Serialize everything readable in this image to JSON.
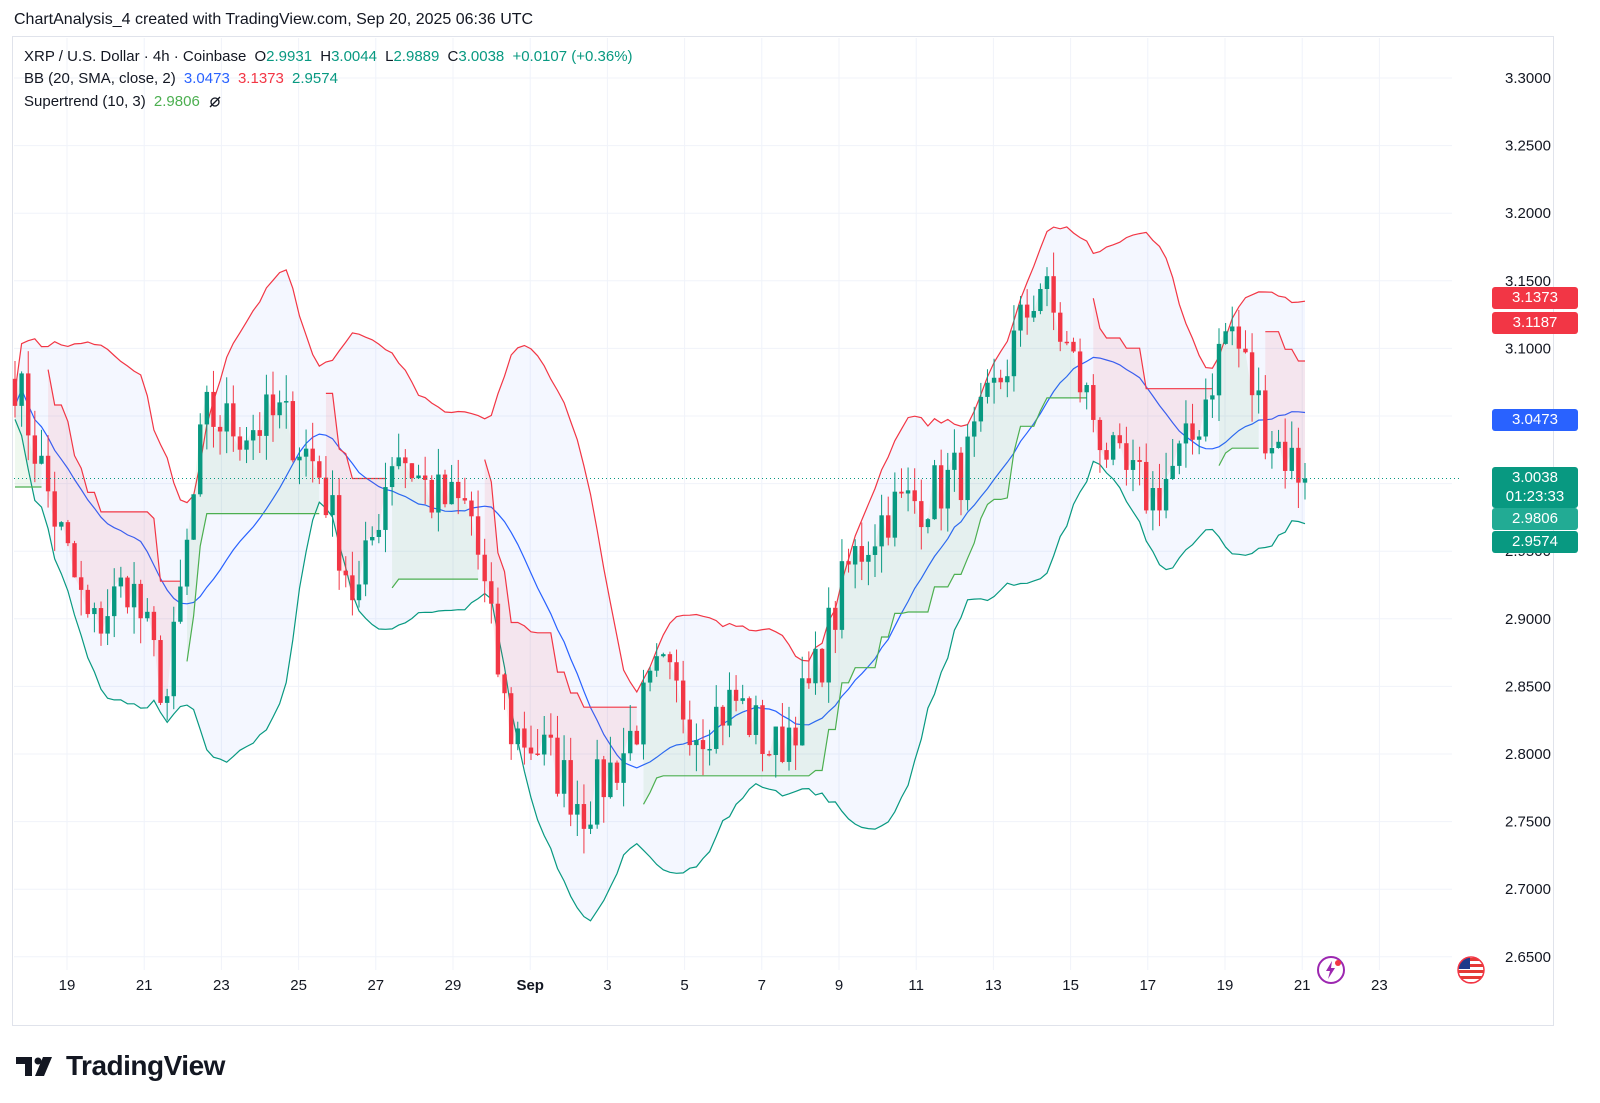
{
  "header": {
    "text": "ChartAnalysis_4 created with TradingView.com, Sep 20, 2025 06:36 UTC"
  },
  "legend": {
    "symbol": "XRP / U.S. Dollar · 4h · Coinbase",
    "o_label": "O",
    "o_value": "2.9931",
    "h_label": "H",
    "h_value": "3.0044",
    "l_label": "L",
    "l_value": "2.9889",
    "c_label": "C",
    "c_value": "3.0038",
    "change": "+0.0107 (+0.36%)",
    "bb_label": "BB (20, SMA, close, 2)",
    "bb_basis": "3.0473",
    "bb_upper": "3.1373",
    "bb_lower": "2.9574",
    "st_label": "Supertrend (10, 3)",
    "st_value": "2.9806",
    "st_icon": "eye-slash-icon"
  },
  "price_tags": [
    {
      "value": "3.1373",
      "color": "#f23645"
    },
    {
      "value": "3.1187",
      "color": "#f23645"
    },
    {
      "value": "3.0473",
      "color": "#2962ff"
    },
    {
      "value": "3.0038",
      "sub": "01:23:33",
      "color": "#089981"
    },
    {
      "value": "2.9806",
      "color": "#22ab94"
    },
    {
      "value": "2.9574",
      "color": "#089981"
    }
  ],
  "branding": {
    "logo_text": "TradingView"
  },
  "colors": {
    "up": "#089981",
    "down": "#f23645",
    "bb_basis": "#2962ff",
    "bb_upper": "#f23645",
    "bb_lower": "#089981",
    "st_up": "#4caf50",
    "st_down": "#f23645"
  },
  "icons": {
    "left_bottom": "lightning-icon",
    "right_bottom": "us-flag-icon"
  },
  "chart_data": {
    "type": "candlestick",
    "title": "XRP / U.S. Dollar · 4h · Coinbase",
    "y_ticks": [
      "3.3000",
      "3.2500",
      "3.2000",
      "3.1500",
      "3.1000",
      "3.0500",
      "3.0000",
      "2.9500",
      "2.9000",
      "2.8500",
      "2.8000",
      "2.7500",
      "2.7000",
      "2.6500"
    ],
    "x_ticks": [
      "19",
      "21",
      "23",
      "25",
      "27",
      "29",
      "Sep",
      "3",
      "5",
      "7",
      "9",
      "11",
      "13",
      "15",
      "17",
      "19",
      "21",
      "23"
    ],
    "ylim": [
      2.65,
      3.3
    ],
    "last_price": 3.0038,
    "candles_close_approx": [
      [
        "Aug 18",
        3.08
      ],
      [
        "Aug 19",
        2.98
      ],
      [
        "Aug 20",
        2.89
      ],
      [
        "Aug 21",
        2.93
      ],
      [
        "Aug 22",
        2.84
      ],
      [
        "Aug 22 PM",
        3.05
      ],
      [
        "Aug 23",
        3.04
      ],
      [
        "Aug 24",
        3.05
      ],
      [
        "Aug 25",
        3.01
      ],
      [
        "Aug 26",
        2.91
      ],
      [
        "Aug 27",
        3.03
      ],
      [
        "Aug 28",
        2.99
      ],
      [
        "Aug 29",
        2.98
      ],
      [
        "Aug 30",
        2.82
      ],
      [
        "Aug 31",
        2.8
      ],
      [
        "Sep 1",
        2.76
      ],
      [
        "Sep 2",
        2.8
      ],
      [
        "Sep 3",
        2.86
      ],
      [
        "Sep 4",
        2.82
      ],
      [
        "Sep 5",
        2.84
      ],
      [
        "Sep 6",
        2.8
      ],
      [
        "Sep 7",
        2.85
      ],
      [
        "Sep 8",
        2.94
      ],
      [
        "Sep 9",
        2.98
      ],
      [
        "Sep 10",
        2.99
      ],
      [
        "Sep 11",
        3.01
      ],
      [
        "Sep 12",
        3.08
      ],
      [
        "Sep 13",
        3.15
      ],
      [
        "Sep 14",
        3.08
      ],
      [
        "Sep 15",
        3.01
      ],
      [
        "Sep 16",
        2.99
      ],
      [
        "Sep 17",
        3.03
      ],
      [
        "Sep 18",
        3.12
      ],
      [
        "Sep 19",
        3.04
      ],
      [
        "Sep 20",
        3.0038
      ]
    ]
  }
}
